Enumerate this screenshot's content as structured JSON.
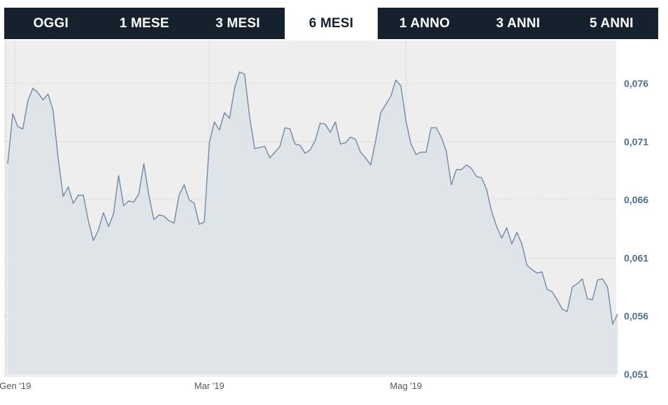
{
  "tabs": [
    {
      "label": "OGGI",
      "active": false
    },
    {
      "label": "1 MESE",
      "active": false
    },
    {
      "label": "3 MESI",
      "active": false
    },
    {
      "label": "6 MESI",
      "active": true
    },
    {
      "label": "1 ANNO",
      "active": false
    },
    {
      "label": "3 ANNI",
      "active": false
    },
    {
      "label": "5 ANNI",
      "active": false
    }
  ],
  "colors": {
    "tab_bar": "#16212e",
    "plot_bg": "#eeeeee",
    "line": "#7189a8",
    "area": "#dfe4e8",
    "ytick_text": "#4d6f96"
  },
  "chart_data": {
    "type": "area",
    "title": "",
    "xlabel": "",
    "ylabel": "",
    "ylim": [
      0.051,
      0.0797
    ],
    "yticks": [
      "0,051",
      "0,056",
      "0,061",
      "0,066",
      "0,071",
      "0,076"
    ],
    "ytick_values": [
      0.051,
      0.056,
      0.061,
      0.066,
      0.071,
      0.076
    ],
    "xticks": [
      {
        "label": "Gen '19",
        "index": 1.5
      },
      {
        "label": "Mar '19",
        "index": 40
      },
      {
        "label": "Mag '19",
        "index": 79
      }
    ],
    "grid": true,
    "series": [
      {
        "values": [
          0.0691,
          0.0734,
          0.0723,
          0.0721,
          0.0745,
          0.0756,
          0.0752,
          0.0746,
          0.0751,
          0.0737,
          0.0696,
          0.0663,
          0.0671,
          0.0657,
          0.0664,
          0.0664,
          0.0642,
          0.0625,
          0.0634,
          0.0649,
          0.0637,
          0.0648,
          0.0681,
          0.0655,
          0.0659,
          0.0658,
          0.0665,
          0.0691,
          0.0664,
          0.0643,
          0.0647,
          0.0646,
          0.0642,
          0.064,
          0.0664,
          0.0673,
          0.066,
          0.0657,
          0.0639,
          0.0641,
          0.0709,
          0.0727,
          0.072,
          0.0735,
          0.073,
          0.0756,
          0.077,
          0.0768,
          0.0731,
          0.0704,
          0.0705,
          0.0706,
          0.0696,
          0.0701,
          0.0706,
          0.0722,
          0.0721,
          0.0708,
          0.0707,
          0.07,
          0.0703,
          0.0711,
          0.0726,
          0.0725,
          0.0718,
          0.0727,
          0.0708,
          0.0709,
          0.0714,
          0.0712,
          0.0701,
          0.0696,
          0.069,
          0.0711,
          0.0735,
          0.0742,
          0.0749,
          0.0763,
          0.0758,
          0.0728,
          0.0708,
          0.0699,
          0.0701,
          0.0701,
          0.0722,
          0.0722,
          0.0714,
          0.0702,
          0.0673,
          0.0686,
          0.0686,
          0.069,
          0.0687,
          0.068,
          0.0679,
          0.0669,
          0.065,
          0.0637,
          0.0627,
          0.0636,
          0.0622,
          0.0632,
          0.0622,
          0.0604,
          0.06,
          0.0597,
          0.0598,
          0.0583,
          0.0581,
          0.0574,
          0.0566,
          0.0564,
          0.0585,
          0.0588,
          0.0592,
          0.0575,
          0.0574,
          0.0591,
          0.0592,
          0.0585,
          0.0553,
          0.0562
        ]
      }
    ]
  }
}
